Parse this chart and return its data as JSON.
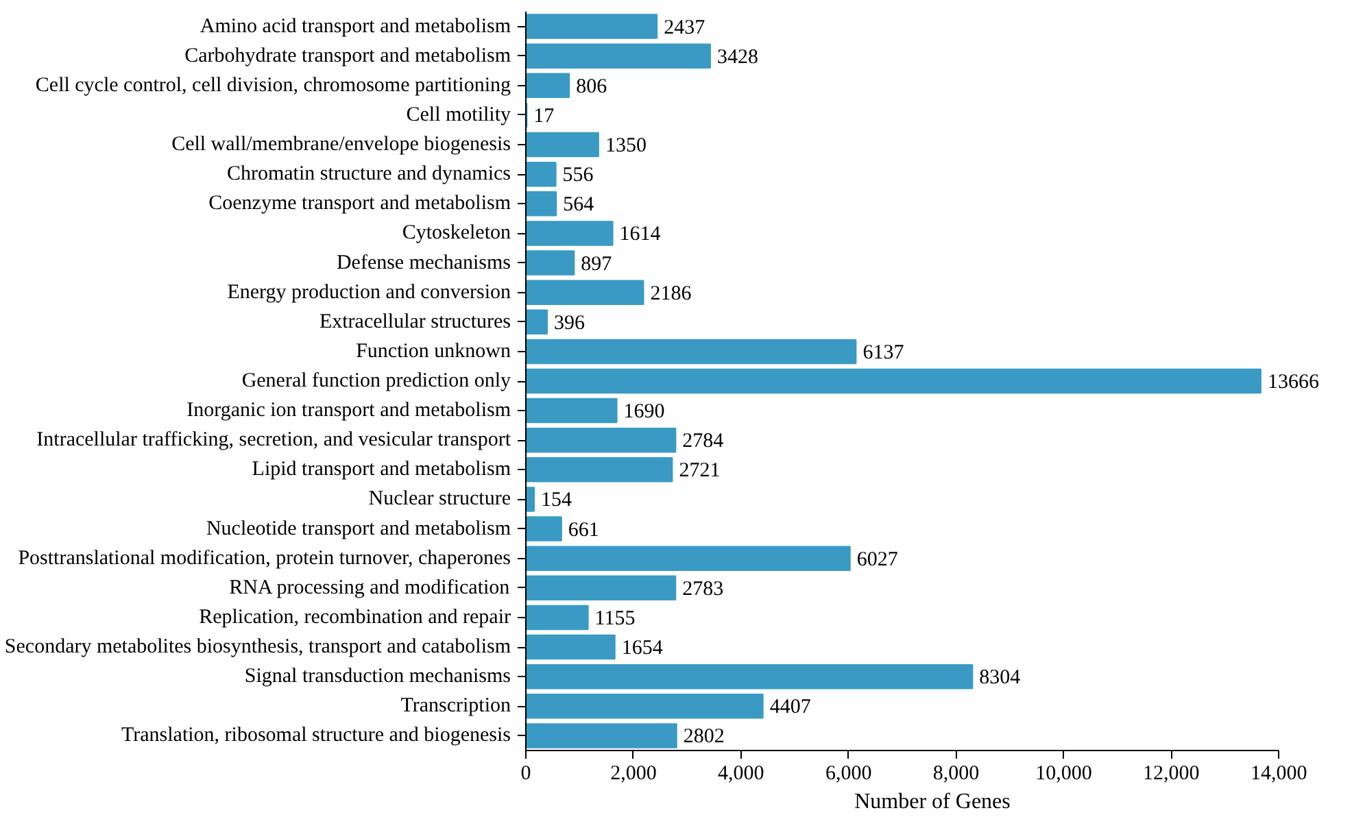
{
  "chart_data": {
    "type": "bar",
    "orientation": "horizontal",
    "xlabel": "Number of Genes",
    "categories": [
      "Amino acid transport and metabolism",
      "Carbohydrate transport and metabolism",
      "Cell cycle control, cell division, chromosome partitioning",
      "Cell motility",
      "Cell wall/membrane/envelope biogenesis",
      "Chromatin structure and dynamics",
      "Coenzyme transport and metabolism",
      "Cytoskeleton",
      "Defense mechanisms",
      "Energy production and conversion",
      "Extracellular structures",
      "Function unknown",
      "General function prediction only",
      "Inorganic ion transport and metabolism",
      "Intracellular trafficking, secretion, and vesicular transport",
      "Lipid transport and metabolism",
      "Nuclear structure",
      "Nucleotide transport and metabolism",
      "Posttranslational modification, protein turnover, chaperones",
      "RNA processing and modification",
      "Replication, recombination and repair",
      "Secondary metabolites biosynthesis, transport and catabolism",
      "Signal transduction mechanisms",
      "Transcription",
      "Translation, ribosomal structure and biogenesis"
    ],
    "values": [
      2437,
      3428,
      806,
      17,
      1350,
      556,
      564,
      1614,
      897,
      2186,
      396,
      6137,
      13666,
      1690,
      2784,
      2721,
      154,
      661,
      6027,
      2783,
      1155,
      1654,
      8304,
      4407,
      2802
    ],
    "color": "#3a9ac4",
    "data_labels": true,
    "grid": false,
    "xlim": [
      0,
      14000
    ],
    "xticks": [
      0,
      {
        "value": 2000,
        "label": "2,000"
      },
      {
        "value": 4000,
        "label": "4,000"
      },
      {
        "value": 6000,
        "label": "6,000"
      },
      {
        "value": 8000,
        "label": "8,000"
      },
      {
        "value": 10000,
        "label": "10,000"
      },
      {
        "value": 12000,
        "label": "12,000"
      },
      {
        "value": 14000,
        "label": "14,000"
      }
    ]
  }
}
